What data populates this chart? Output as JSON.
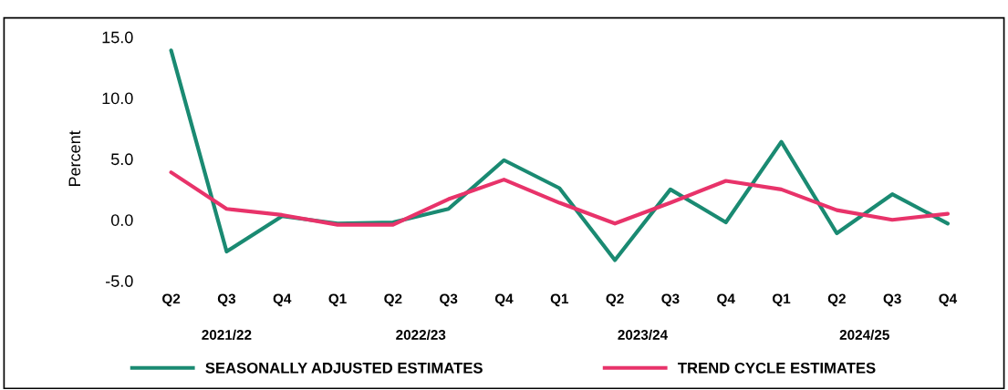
{
  "chart_data": {
    "type": "line",
    "ylabel": "Percent",
    "categories": [
      "Q2",
      "Q3",
      "Q4",
      "Q1",
      "Q2",
      "Q3",
      "Q4",
      "Q1",
      "Q2",
      "Q3",
      "Q4",
      "Q1",
      "Q2",
      "Q3",
      "Q4"
    ],
    "series": [
      {
        "name": "SEASONALLY ADJUSTED ESTIMATES",
        "color": "#1a8a72",
        "values": [
          13.9,
          -2.6,
          0.3,
          -0.3,
          -0.2,
          0.9,
          4.9,
          2.6,
          -3.3,
          2.5,
          -0.2,
          6.4,
          -1.1,
          2.1,
          -0.3
        ]
      },
      {
        "name": "TREND CYCLE ESTIMATES",
        "color": "#e8336a",
        "values": [
          3.9,
          0.9,
          0.4,
          -0.4,
          -0.4,
          1.7,
          3.3,
          1.4,
          -0.3,
          1.4,
          3.2,
          2.5,
          0.8,
          0.0,
          0.5
        ]
      }
    ],
    "annotations": [
      "2021/22",
      "2022/23",
      "2023/24",
      "2024/25"
    ],
    "ylim": [
      -5,
      15
    ],
    "yticks": [
      {
        "value": -5,
        "label": "-5.0"
      },
      {
        "value": 0,
        "label": "0.0"
      },
      {
        "value": 5,
        "label": "5.0"
      },
      {
        "value": 10,
        "label": "10.0"
      },
      {
        "value": 15,
        "label": "15.0"
      }
    ],
    "grid": false,
    "legend": "bottom",
    "marker": "none",
    "line_style": "solid"
  }
}
